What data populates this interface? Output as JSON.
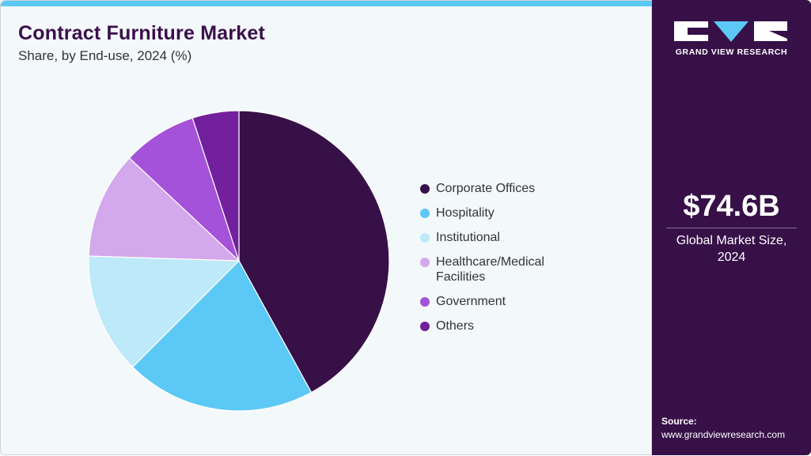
{
  "header": {
    "title": "Contract Furniture Market",
    "subtitle": "Share, by End-use, 2024 (%)"
  },
  "sidebar": {
    "brand": "GRAND VIEW RESEARCH",
    "market_value": "$74.6B",
    "market_label_1": "Global Market Size,",
    "market_label_2": "2024",
    "source_label": "Source:",
    "source_url": "www.grandviewresearch.com"
  },
  "chart_data": {
    "type": "pie",
    "title": "Contract Furniture Market",
    "subtitle": "Share, by End-use, 2024 (%)",
    "categories": [
      "Corporate Offices",
      "Hospitality",
      "Institutional",
      "Healthcare/Medical Facilities",
      "Government",
      "Others"
    ],
    "values": [
      42,
      20.5,
      13,
      11.5,
      8,
      5
    ],
    "colors": [
      "#371048",
      "#5bc8f5",
      "#bde9f9",
      "#d4a8ec",
      "#a452d9",
      "#72209e"
    ],
    "legend_labels": [
      [
        "Corporate Offices"
      ],
      [
        "Hospitality"
      ],
      [
        "Institutional"
      ],
      [
        "Healthcare/Medical",
        "Facilities"
      ],
      [
        "Government"
      ],
      [
        "Others"
      ]
    ],
    "legend_position": "right",
    "start_angle": "12 o'clock, clockwise"
  }
}
